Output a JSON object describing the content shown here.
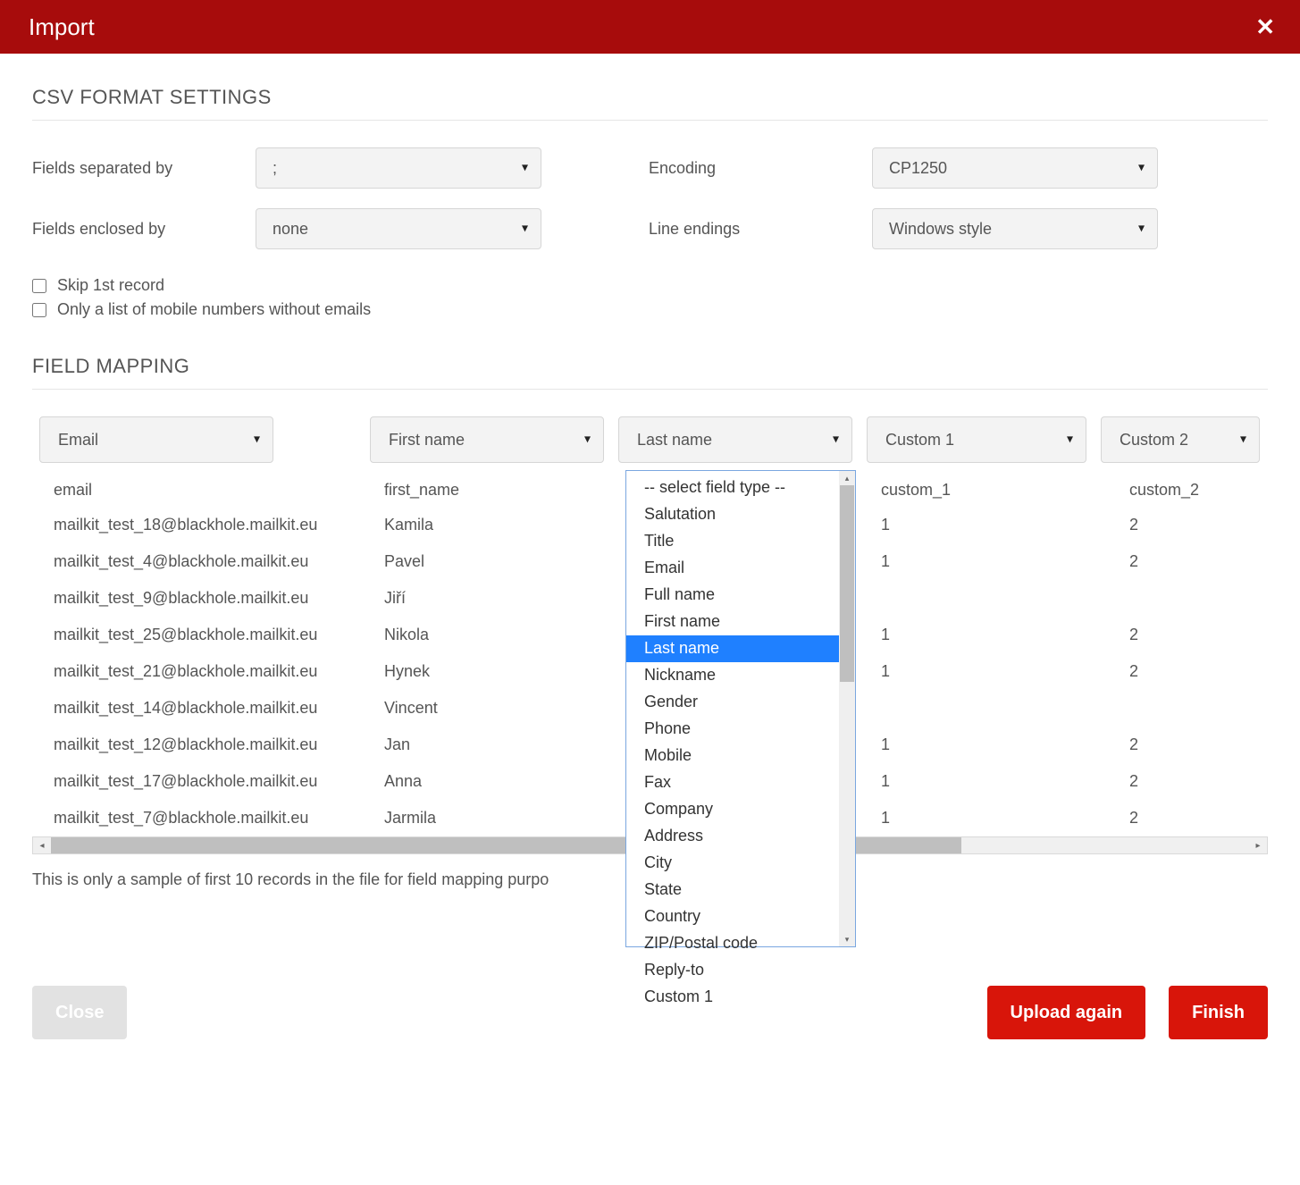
{
  "header": {
    "title": "Import"
  },
  "sections": {
    "csv_title": "CSV FORMAT SETTINGS",
    "mapping_title": "FIELD MAPPING"
  },
  "csv": {
    "separator_label": "Fields separated by",
    "separator_value": ";",
    "encoding_label": "Encoding",
    "encoding_value": "CP1250",
    "enclosed_label": "Fields enclosed by",
    "enclosed_value": "none",
    "line_endings_label": "Line endings",
    "line_endings_value": "Windows style"
  },
  "checks": {
    "skip_label": "Skip 1st record",
    "skip_checked": false,
    "mobile_label": "Only a list of mobile numbers without emails",
    "mobile_checked": false
  },
  "mapping": {
    "columns": [
      {
        "label": "Email"
      },
      {
        "label": "First name"
      },
      {
        "label": "Last name"
      },
      {
        "label": "Custom 1"
      },
      {
        "label": "Custom 2"
      }
    ],
    "header_row": [
      "email",
      "first_name",
      "",
      "custom_1",
      "custom_2"
    ],
    "rows": [
      [
        "mailkit_test_18@blackhole.mailkit.eu",
        "Kamila",
        "",
        "1",
        "2"
      ],
      [
        "mailkit_test_4@blackhole.mailkit.eu",
        "Pavel",
        "",
        "1",
        "2"
      ],
      [
        "mailkit_test_9@blackhole.mailkit.eu",
        "Jiří",
        "",
        "",
        ""
      ],
      [
        "mailkit_test_25@blackhole.mailkit.eu",
        "Nikola",
        "",
        "1",
        "2"
      ],
      [
        "mailkit_test_21@blackhole.mailkit.eu",
        "Hynek",
        "",
        "1",
        "2"
      ],
      [
        "mailkit_test_14@blackhole.mailkit.eu",
        "Vincent",
        "",
        "",
        ""
      ],
      [
        "mailkit_test_12@blackhole.mailkit.eu",
        "Jan",
        "",
        "1",
        "2"
      ],
      [
        "mailkit_test_17@blackhole.mailkit.eu",
        "Anna",
        "",
        "1",
        "2"
      ],
      [
        "mailkit_test_7@blackhole.mailkit.eu",
        "Jarmila",
        "",
        "1",
        "2"
      ]
    ]
  },
  "dropdown": {
    "options": [
      "-- select field type --",
      "Salutation",
      "Title",
      "Email",
      "Full name",
      "First name",
      "Last name",
      "Nickname",
      "Gender",
      "Phone",
      "Mobile",
      "Fax",
      "Company",
      "Address",
      "City",
      "State",
      "Country",
      "ZIP/Postal code",
      "Reply-to",
      "Custom 1"
    ],
    "selected_index": 6
  },
  "note": "This is only a sample of first 10 records in the file for field mapping purpo",
  "footer": {
    "close": "Close",
    "upload_again": "Upload again",
    "finish": "Finish"
  },
  "colors": {
    "brand_red_dark": "#a70c0c",
    "brand_red": "#d8150a",
    "highlight_blue": "#1f80ff"
  }
}
